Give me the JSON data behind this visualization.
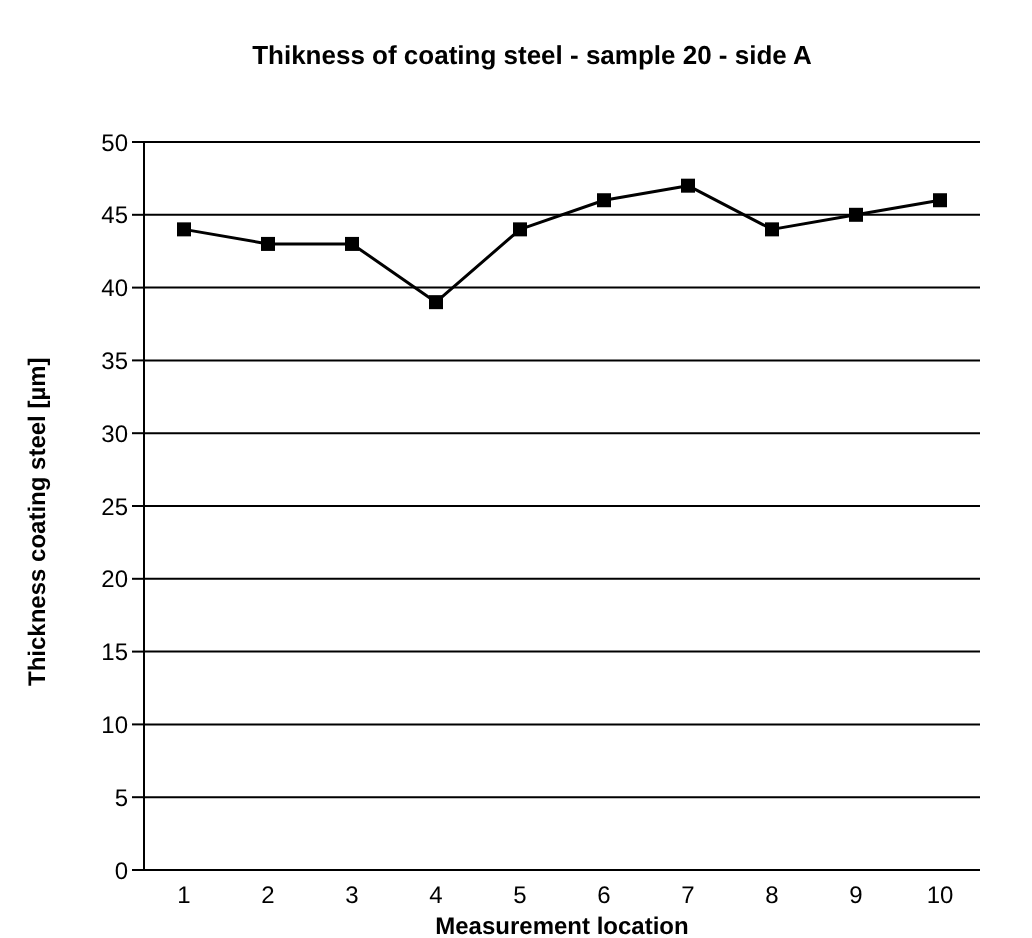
{
  "chart_data": {
    "type": "line",
    "title": "Thikness of coating steel - sample 20 - side A",
    "xlabel": "Measurement location",
    "ylabel": "Thickness coating steel [µm]",
    "categories": [
      "1",
      "2",
      "3",
      "4",
      "5",
      "6",
      "7",
      "8",
      "9",
      "10"
    ],
    "series": [
      {
        "color": "#000000",
        "values": [
          44,
          43,
          43,
          39,
          44,
          46,
          47,
          44,
          45,
          46
        ]
      }
    ],
    "ylim": [
      0,
      50
    ],
    "yticks": [
      0,
      5,
      10,
      15,
      20,
      25,
      30,
      35,
      40,
      45,
      50
    ],
    "grid": "y",
    "marker": "square",
    "line_style": "solid"
  }
}
